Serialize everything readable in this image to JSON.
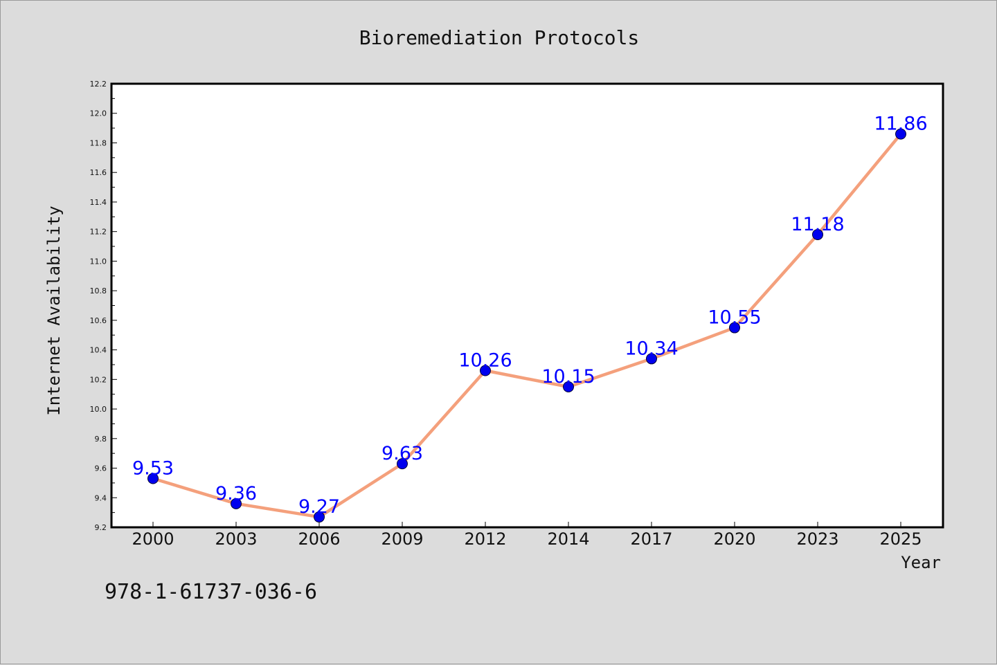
{
  "chart_data": {
    "type": "line",
    "title": "Bioremediation Protocols",
    "xlabel": "Year",
    "ylabel": "Internet Availability",
    "categories": [
      "2000",
      "2003",
      "2006",
      "2009",
      "2012",
      "2014",
      "2017",
      "2020",
      "2023",
      "2025"
    ],
    "series": [
      {
        "values": [
          9.53,
          9.36,
          9.27,
          9.63,
          10.26,
          10.15,
          10.34,
          10.55,
          11.18,
          11.86
        ],
        "line_color": "#f4a07c",
        "marker_color": "#0000ee"
      }
    ],
    "data_labels": [
      "9.53",
      "9.36",
      "9.27",
      "9.63",
      "10.26",
      "10.15",
      "10.34",
      "10.55",
      "11.18",
      "11.86"
    ],
    "y_ticks": [
      "9.2",
      "9.4",
      "9.6",
      "9.8",
      "10.0",
      "10.2",
      "10.4",
      "10.6",
      "10.8",
      "11.0",
      "11.2",
      "11.4",
      "11.6",
      "11.8",
      "12.0",
      "12.2"
    ],
    "ylim": [
      9.2,
      12.2
    ],
    "grid": false,
    "legend": "none"
  },
  "footer_text": "978-1-61737-036-6"
}
